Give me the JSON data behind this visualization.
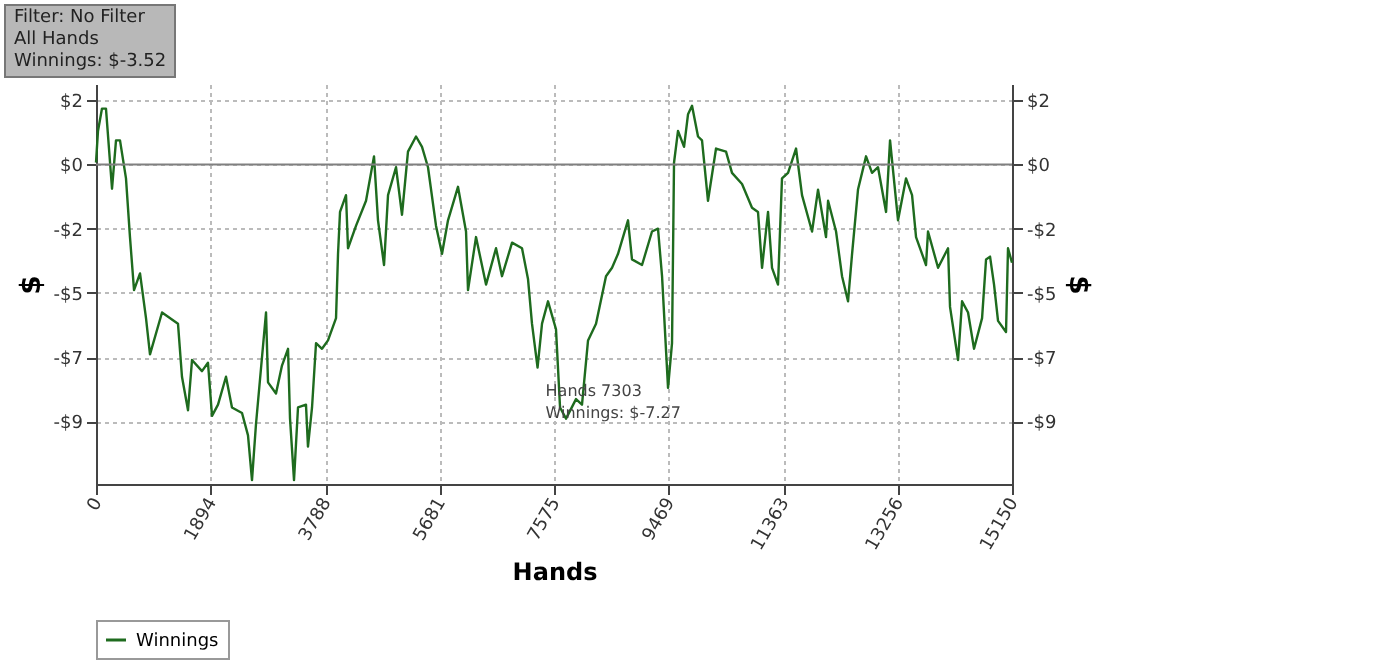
{
  "chart_data": {
    "type": "line",
    "xlabel": "Hands",
    "ylabel": "$",
    "y2label": "$",
    "annotations": [
      "Filter: No Filter",
      "All Hands",
      "Winnings: $-3.52",
      {
        "text": "Hands 7303",
        "x": 7303,
        "y": -7.27
      },
      {
        "text": "Winnings: $-7.27",
        "x": 7303,
        "y": -7.27
      }
    ],
    "x": [
      0,
      33,
      99,
      165,
      265,
      331,
      397,
      496,
      562,
      629,
      728,
      827,
      893,
      1092,
      1356,
      1422,
      1522,
      1588,
      1753,
      1852,
      1919,
      2018,
      2150,
      2249,
      2415,
      2514,
      2580,
      2646,
      2812,
      2845,
      2977,
      3076,
      3176,
      3209,
      3275,
      3341,
      3473,
      3506,
      3573,
      3639,
      3738,
      3837,
      3970,
      4003,
      4036,
      4135,
      4168,
      4300,
      4466,
      4598,
      4664,
      4764,
      4830,
      4962,
      5061,
      5160,
      5293,
      5392,
      5491,
      5624,
      5723,
      5822,
      5987,
      6120,
      6153,
      6285,
      6451,
      6616,
      6715,
      6881,
      7046,
      7145,
      7211,
      7303,
      7377,
      7476,
      7608,
      7675,
      7774,
      7939,
      8038,
      8138,
      8270,
      8435,
      8535,
      8634,
      8799,
      8865,
      9031,
      9196,
      9295,
      9362,
      9461,
      9527,
      9560,
      9626,
      9726,
      9792,
      9858,
      9957,
      10023,
      10122,
      10255,
      10420,
      10519,
      10685,
      10850,
      10949,
      11016,
      11115,
      11181,
      11280,
      11346,
      11446,
      11578,
      11677,
      11843,
      11942,
      12074,
      12108,
      12240,
      12339,
      12438,
      12505,
      12603,
      12736,
      12835,
      12934,
      13067,
      13133,
      13265,
      13397,
      13497,
      13563,
      13728,
      13761,
      13927,
      14092,
      14125,
      14258,
      14324,
      14423,
      14522,
      14655,
      14721,
      14787,
      14853,
      14919,
      15051,
      15084,
      15150
    ],
    "series": [
      {
        "name": "Winnings",
        "color": "#1e6b1e",
        "values": [
          0.07,
          1.2,
          2.0,
          2.0,
          -0.87,
          0.86,
          0.86,
          -0.5,
          -2.6,
          -4.5,
          -3.9,
          -5.5,
          -6.8,
          -5.3,
          -5.7,
          -7.6,
          -8.8,
          -7.0,
          -7.4,
          -7.1,
          -9.0,
          -8.6,
          -7.6,
          -8.7,
          -8.9,
          -9.7,
          -11.3,
          -9.3,
          -5.3,
          -7.8,
          -8.2,
          -7.2,
          -6.6,
          -9.1,
          -11.3,
          -8.7,
          -8.6,
          -10.1,
          -8.7,
          -6.4,
          -6.6,
          -6.3,
          -5.5,
          -3.2,
          -1.7,
          -1.1,
          -3.0,
          -2.2,
          -1.3,
          0.29,
          -2.0,
          -3.6,
          -1.1,
          -0.1,
          -1.8,
          0.46,
          1.0,
          0.63,
          -0.1,
          -2.2,
          -3.2,
          -2.0,
          -0.8,
          -2.4,
          -4.5,
          -2.6,
          -4.3,
          -3.0,
          -4.0,
          -2.8,
          -3.0,
          -4.1,
          -5.7,
          -7.27,
          -5.7,
          -4.9,
          -5.9,
          -8.7,
          -9.1,
          -8.4,
          -8.6,
          -6.3,
          -5.7,
          -4.0,
          -3.7,
          -3.2,
          -2.0,
          -3.4,
          -3.6,
          -2.4,
          -2.3,
          -4.0,
          -8.0,
          -6.4,
          0.06,
          1.2,
          0.63,
          1.8,
          2.1,
          1.0,
          0.86,
          -1.3,
          0.57,
          0.46,
          -0.3,
          -0.7,
          -1.55,
          -1.7,
          -3.7,
          -1.7,
          -3.7,
          -4.3,
          -0.5,
          -0.3,
          0.57,
          -1.1,
          -2.4,
          -0.9,
          -2.6,
          -1.3,
          -2.4,
          -4.0,
          -4.9,
          -3.2,
          -0.9,
          0.29,
          -0.3,
          -0.1,
          -1.7,
          0.86,
          -2.0,
          -0.5,
          -1.1,
          -2.6,
          -3.6,
          -2.4,
          -3.7,
          -3.0,
          -5.1,
          -7.0,
          -4.9,
          -5.3,
          -6.6,
          -5.5,
          -3.4,
          -3.3,
          -4.3,
          -5.6,
          -6.0,
          -3.0,
          -3.52
        ]
      }
    ],
    "xlim": [
      0,
      15150
    ],
    "xticks": [
      0,
      1894,
      3788,
      5681,
      7575,
      9469,
      11363,
      13256,
      15150
    ],
    "ylim": [
      -11.44,
      2.88
    ],
    "yticks": [
      {
        "value": 2.3,
        "label": "$2"
      },
      {
        "value": 0,
        "label": "$0"
      },
      {
        "value": -2.3,
        "label": "-$2"
      },
      {
        "value": -4.6,
        "label": "-$5"
      },
      {
        "value": -6.9,
        "label": "-$7"
      },
      {
        "value": -9.2,
        "label": "-$9"
      }
    ],
    "y2lim": [
      -11.44,
      2.88
    ],
    "y2ticks": [
      {
        "value": 2.3,
        "label": "$2"
      },
      {
        "value": 0,
        "label": "$0"
      },
      {
        "value": -2.3,
        "label": "-$2"
      },
      {
        "value": -4.6,
        "label": "-$5"
      },
      {
        "value": -6.9,
        "label": "-$7"
      },
      {
        "value": -9.2,
        "label": "-$9"
      }
    ],
    "ref_lines": [
      {
        "axis": "y",
        "value": 0,
        "color": "#808080"
      }
    ],
    "grid": true,
    "legend": "bottom left",
    "marker": "none",
    "line_style": "solid"
  }
}
